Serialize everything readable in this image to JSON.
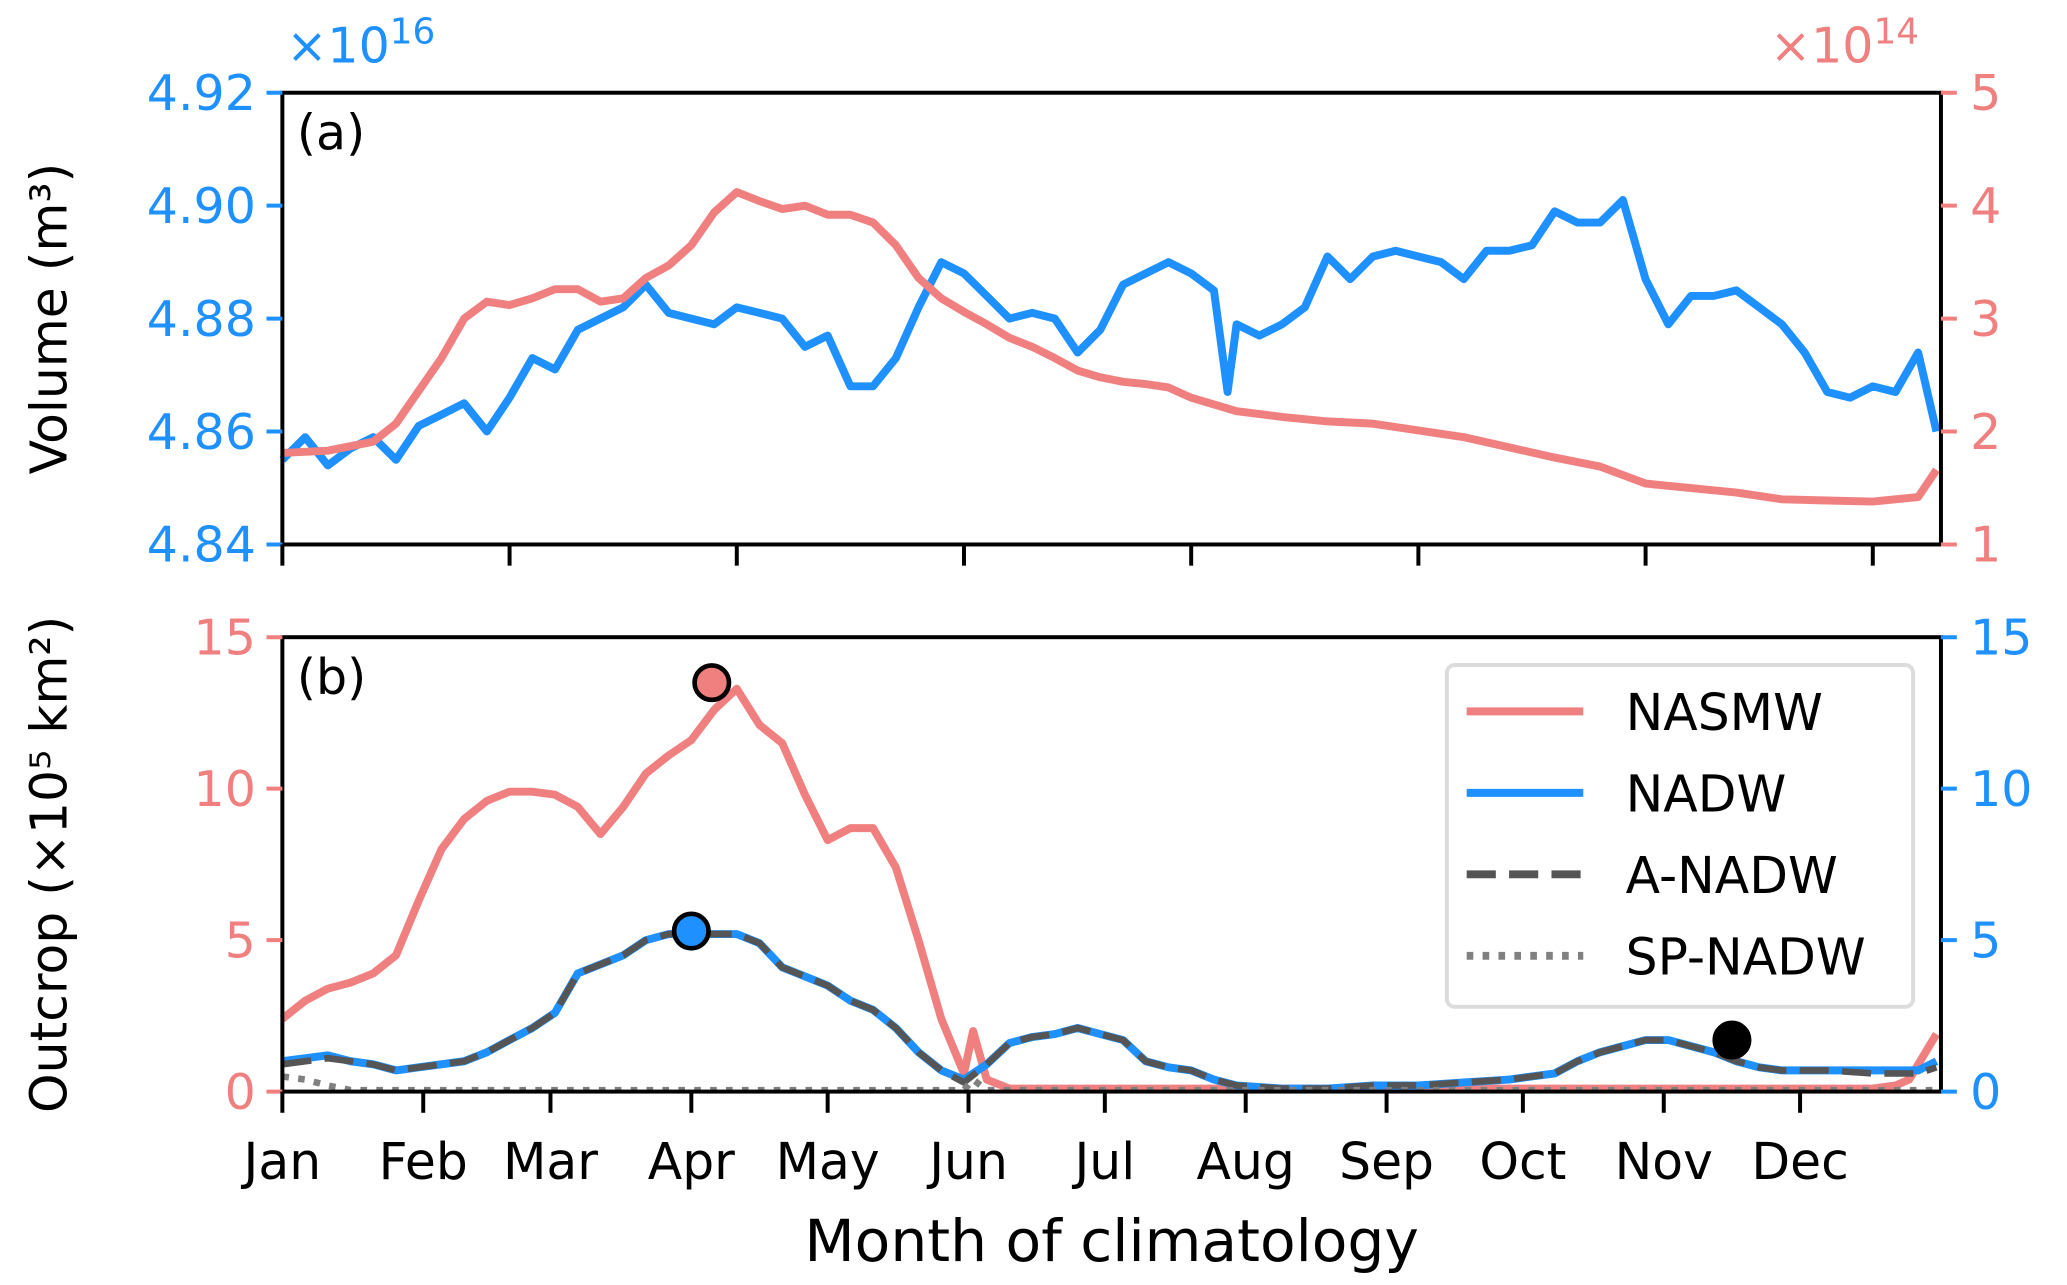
{
  "colors": {
    "nasmw": "#F08080",
    "nadw": "#1E90FF",
    "a_nadw": "#555555",
    "sp_nadw": "#808080",
    "marker_black": "#000000"
  },
  "xlabel": "Month of climatology",
  "chart_data": [
    {
      "type": "line",
      "panel_label": "(a)",
      "ylabel": "Volume (m³)",
      "x_unit": "day of year",
      "xlim": [
        0,
        365
      ],
      "x_ticks_unlabeled": [
        0,
        50,
        100,
        150,
        200,
        250,
        300,
        350
      ],
      "left_axis": {
        "ylim": [
          4.84,
          4.92
        ],
        "ticks": [
          "4.84",
          "4.86",
          "4.88",
          "4.90",
          "4.92"
        ],
        "offset_label": "×10",
        "offset_exp": "16",
        "color": "#1E90FF"
      },
      "right_axis": {
        "ylim": [
          1,
          5
        ],
        "ticks": [
          "1",
          "2",
          "3",
          "4",
          "5"
        ],
        "offset_label": "×10",
        "offset_exp": "14",
        "color": "#F08080"
      },
      "series": [
        {
          "key": "nadw",
          "axis": "left",
          "style": "solid",
          "x": [
            0,
            5,
            10,
            15,
            20,
            25,
            30,
            35,
            40,
            45,
            50,
            55,
            60,
            65,
            70,
            75,
            80,
            85,
            90,
            95,
            100,
            105,
            110,
            115,
            120,
            125,
            130,
            135,
            140,
            145,
            150,
            155,
            160,
            165,
            170,
            175,
            180,
            185,
            190,
            195,
            200,
            205,
            208,
            210,
            215,
            220,
            225,
            230,
            235,
            240,
            245,
            250,
            255,
            260,
            265,
            270,
            275,
            280,
            285,
            290,
            295,
            300,
            305,
            310,
            315,
            320,
            325,
            330,
            335,
            340,
            345,
            350,
            355,
            360,
            364
          ],
          "y": [
            4.855,
            4.859,
            4.854,
            4.857,
            4.859,
            4.855,
            4.861,
            4.863,
            4.865,
            4.86,
            4.866,
            4.873,
            4.871,
            4.878,
            4.88,
            4.882,
            4.886,
            4.881,
            4.88,
            4.879,
            4.882,
            4.881,
            4.88,
            4.875,
            4.877,
            4.868,
            4.868,
            4.873,
            4.882,
            4.89,
            4.888,
            4.884,
            4.88,
            4.881,
            4.88,
            4.874,
            4.878,
            4.886,
            4.888,
            4.89,
            4.888,
            4.885,
            4.867,
            4.879,
            4.877,
            4.879,
            4.882,
            4.891,
            4.887,
            4.891,
            4.892,
            4.891,
            4.89,
            4.887,
            4.892,
            4.892,
            4.893,
            4.899,
            4.897,
            4.897,
            4.901,
            4.887,
            4.879,
            4.884,
            4.884,
            4.885,
            4.882,
            4.879,
            4.874,
            4.867,
            4.866,
            4.868,
            4.867,
            4.874,
            4.86
          ]
        },
        {
          "key": "nasmw",
          "axis": "right",
          "style": "solid",
          "x": [
            0,
            10,
            20,
            25,
            30,
            35,
            40,
            45,
            50,
            55,
            60,
            65,
            70,
            75,
            80,
            85,
            90,
            95,
            100,
            105,
            110,
            115,
            120,
            125,
            130,
            135,
            140,
            145,
            150,
            155,
            160,
            165,
            170,
            175,
            180,
            185,
            190,
            195,
            200,
            205,
            210,
            220,
            230,
            240,
            250,
            260,
            270,
            280,
            290,
            300,
            310,
            320,
            330,
            340,
            350,
            360,
            364
          ],
          "y": [
            1.81,
            1.83,
            1.91,
            2.07,
            2.36,
            2.65,
            3.0,
            3.15,
            3.12,
            3.18,
            3.26,
            3.26,
            3.15,
            3.18,
            3.36,
            3.47,
            3.65,
            3.94,
            4.12,
            4.04,
            3.97,
            4.0,
            3.92,
            3.92,
            3.85,
            3.65,
            3.36,
            3.18,
            3.06,
            2.95,
            2.83,
            2.75,
            2.65,
            2.54,
            2.48,
            2.44,
            2.42,
            2.39,
            2.3,
            2.24,
            2.18,
            2.13,
            2.09,
            2.07,
            2.01,
            1.95,
            1.86,
            1.77,
            1.69,
            1.54,
            1.5,
            1.46,
            1.4,
            1.39,
            1.38,
            1.42,
            1.66
          ]
        }
      ]
    },
    {
      "type": "line",
      "panel_label": "(b)",
      "ylabel": "Outcrop (×10⁵ km²)",
      "x_unit": "day of year",
      "xlim": [
        0,
        365
      ],
      "month_ticks": [
        {
          "label": "Jan",
          "day": 0
        },
        {
          "label": "Feb",
          "day": 31
        },
        {
          "label": "Mar",
          "day": 59
        },
        {
          "label": "Apr",
          "day": 90
        },
        {
          "label": "May",
          "day": 120
        },
        {
          "label": "Jun",
          "day": 151
        },
        {
          "label": "Jul",
          "day": 181
        },
        {
          "label": "Aug",
          "day": 212
        },
        {
          "label": "Sep",
          "day": 243
        },
        {
          "label": "Oct",
          "day": 273
        },
        {
          "label": "Nov",
          "day": 304
        },
        {
          "label": "Dec",
          "day": 334
        }
      ],
      "left_axis": {
        "ylim": [
          0,
          15
        ],
        "ticks": [
          "0",
          "5",
          "10",
          "15"
        ],
        "color": "#F08080"
      },
      "right_axis": {
        "ylim": [
          0,
          15
        ],
        "ticks": [
          "0",
          "5",
          "10",
          "15"
        ],
        "color": "#1E90FF"
      },
      "legend": {
        "placement": "top-right",
        "entries": [
          "NASMW",
          "NADW",
          "A-NADW",
          "SP-NADW"
        ]
      },
      "series": [
        {
          "name": "NASMW",
          "key": "nasmw",
          "axis": "left",
          "style": "solid",
          "x": [
            0,
            5,
            10,
            15,
            20,
            25,
            30,
            35,
            40,
            45,
            50,
            55,
            60,
            65,
            70,
            75,
            80,
            85,
            90,
            95,
            100,
            105,
            110,
            115,
            120,
            125,
            130,
            135,
            140,
            145,
            150,
            152,
            155,
            160,
            200,
            250,
            300,
            350,
            355,
            358,
            364
          ],
          "y": [
            2.4,
            3.0,
            3.4,
            3.6,
            3.9,
            4.5,
            6.3,
            8.0,
            9.0,
            9.6,
            9.9,
            9.9,
            9.8,
            9.4,
            8.5,
            9.4,
            10.5,
            11.1,
            11.6,
            12.6,
            13.3,
            12.1,
            11.5,
            9.8,
            8.3,
            8.7,
            8.7,
            7.4,
            5.0,
            2.4,
            0.6,
            2.0,
            0.4,
            0.1,
            0.1,
            0.1,
            0.1,
            0.1,
            0.2,
            0.4,
            1.9
          ]
        },
        {
          "name": "NADW",
          "key": "nadw",
          "axis": "right",
          "style": "solid",
          "x": [
            0,
            10,
            15,
            20,
            25,
            30,
            40,
            45,
            50,
            55,
            60,
            65,
            70,
            75,
            80,
            85,
            90,
            95,
            100,
            105,
            110,
            115,
            120,
            125,
            130,
            135,
            140,
            145,
            150,
            155,
            160,
            165,
            170,
            175,
            180,
            185,
            190,
            195,
            200,
            205,
            210,
            220,
            230,
            240,
            250,
            260,
            270,
            280,
            285,
            290,
            295,
            300,
            305,
            310,
            315,
            320,
            325,
            330,
            340,
            350,
            360,
            364
          ],
          "y": [
            1.0,
            1.2,
            1.0,
            0.9,
            0.7,
            0.8,
            1.0,
            1.3,
            1.7,
            2.1,
            2.6,
            3.9,
            4.2,
            4.5,
            5.0,
            5.2,
            5.2,
            5.2,
            5.2,
            4.9,
            4.1,
            3.8,
            3.5,
            3.0,
            2.7,
            2.1,
            1.3,
            0.7,
            0.4,
            0.9,
            1.6,
            1.8,
            1.9,
            2.1,
            1.9,
            1.7,
            1.0,
            0.8,
            0.7,
            0.4,
            0.2,
            0.1,
            0.1,
            0.2,
            0.2,
            0.3,
            0.4,
            0.6,
            1.0,
            1.3,
            1.5,
            1.7,
            1.7,
            1.5,
            1.3,
            1.0,
            0.8,
            0.7,
            0.7,
            0.7,
            0.7,
            1.0
          ]
        },
        {
          "name": "A-NADW",
          "key": "a_nadw",
          "axis": "right",
          "style": "dashed",
          "x": [
            0,
            10,
            15,
            20,
            25,
            30,
            40,
            45,
            50,
            55,
            60,
            65,
            70,
            75,
            80,
            85,
            90,
            95,
            100,
            105,
            110,
            115,
            120,
            125,
            130,
            135,
            140,
            145,
            150,
            155,
            160,
            165,
            170,
            175,
            180,
            185,
            190,
            195,
            200,
            205,
            210,
            220,
            230,
            240,
            250,
            260,
            270,
            280,
            285,
            290,
            295,
            300,
            305,
            310,
            315,
            320,
            325,
            330,
            340,
            350,
            360,
            364
          ],
          "y": [
            0.9,
            1.1,
            1.0,
            0.9,
            0.7,
            0.8,
            1.0,
            1.3,
            1.7,
            2.1,
            2.6,
            3.9,
            4.2,
            4.5,
            5.0,
            5.2,
            5.2,
            5.2,
            5.2,
            4.9,
            4.1,
            3.8,
            3.5,
            3.0,
            2.7,
            2.1,
            1.3,
            0.7,
            0.3,
            0.9,
            1.6,
            1.8,
            1.9,
            2.1,
            1.9,
            1.7,
            1.0,
            0.8,
            0.7,
            0.4,
            0.2,
            0.1,
            0.1,
            0.2,
            0.2,
            0.3,
            0.4,
            0.6,
            1.0,
            1.3,
            1.5,
            1.7,
            1.7,
            1.5,
            1.3,
            1.0,
            0.8,
            0.7,
            0.7,
            0.6,
            0.6,
            0.8
          ]
        },
        {
          "name": "SP-NADW",
          "key": "sp_nadw",
          "axis": "right",
          "style": "dotted",
          "x": [
            0,
            5,
            10,
            15,
            150,
            152,
            155,
            160,
            300,
            364
          ],
          "y": [
            0.5,
            0.4,
            0.2,
            0.05,
            0.05,
            0.4,
            0.05,
            0.05,
            0.05,
            0.05
          ]
        }
      ],
      "markers": [
        {
          "key": "nasmw",
          "axis": "left",
          "x": 94.5,
          "y": 13.5,
          "fill": "#F08080"
        },
        {
          "key": "nadw",
          "axis": "right",
          "x": 90,
          "y": 5.3,
          "fill": "#1E90FF"
        },
        {
          "key": "a_nadw",
          "axis": "right",
          "x": 319,
          "y": 1.7,
          "fill": "#000000"
        }
      ]
    }
  ]
}
